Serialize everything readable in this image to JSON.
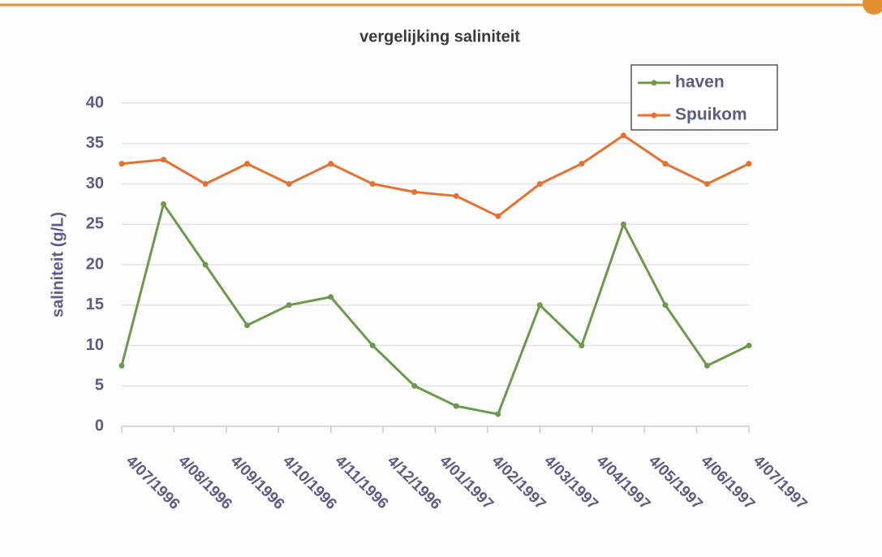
{
  "chart_data": {
    "type": "line",
    "title": "vergelijking saliniteit",
    "y_label": "saliniteit (g/L)",
    "x": [
      0,
      0.8,
      1.6,
      2.4,
      3.2,
      4,
      4.8,
      5.6,
      6.4,
      7.2,
      8,
      8.8,
      9.6,
      10.4,
      11.2,
      12
    ],
    "xlim": [
      0,
      12
    ],
    "xticks": [
      {
        "value": 0,
        "label": "4/07/1996"
      },
      {
        "value": 1,
        "label": "4/08/1996"
      },
      {
        "value": 2,
        "label": "4/09/1996"
      },
      {
        "value": 3,
        "label": "4/10/1996"
      },
      {
        "value": 4,
        "label": "4/11/1996"
      },
      {
        "value": 5,
        "label": "4/12/1996"
      },
      {
        "value": 6,
        "label": "4/01/1997"
      },
      {
        "value": 7,
        "label": "4/02/1997"
      },
      {
        "value": 8,
        "label": "4/03/1997"
      },
      {
        "value": 9,
        "label": "4/04/1997"
      },
      {
        "value": 10,
        "label": "4/05/1997"
      },
      {
        "value": 11,
        "label": "4/06/1997"
      },
      {
        "value": 12,
        "label": "4/07/1997"
      }
    ],
    "ylim": [
      0,
      40
    ],
    "yticks": [
      0,
      5,
      10,
      15,
      20,
      25,
      30,
      35,
      40
    ],
    "grid": true,
    "legend": "top-right",
    "series": [
      {
        "name": "haven",
        "color": "#6b9a4c",
        "values": [
          7.5,
          27.5,
          20,
          12.5,
          15,
          16,
          10,
          5,
          2.5,
          1.5,
          15,
          10,
          25,
          15,
          7.5,
          10
        ]
      },
      {
        "name": "Spuikom",
        "color": "#e8702c",
        "values": [
          32.5,
          33,
          30,
          32.5,
          30,
          32.5,
          30,
          29,
          28.5,
          26,
          30,
          32.5,
          36,
          32.5,
          30,
          32.5
        ]
      }
    ]
  }
}
